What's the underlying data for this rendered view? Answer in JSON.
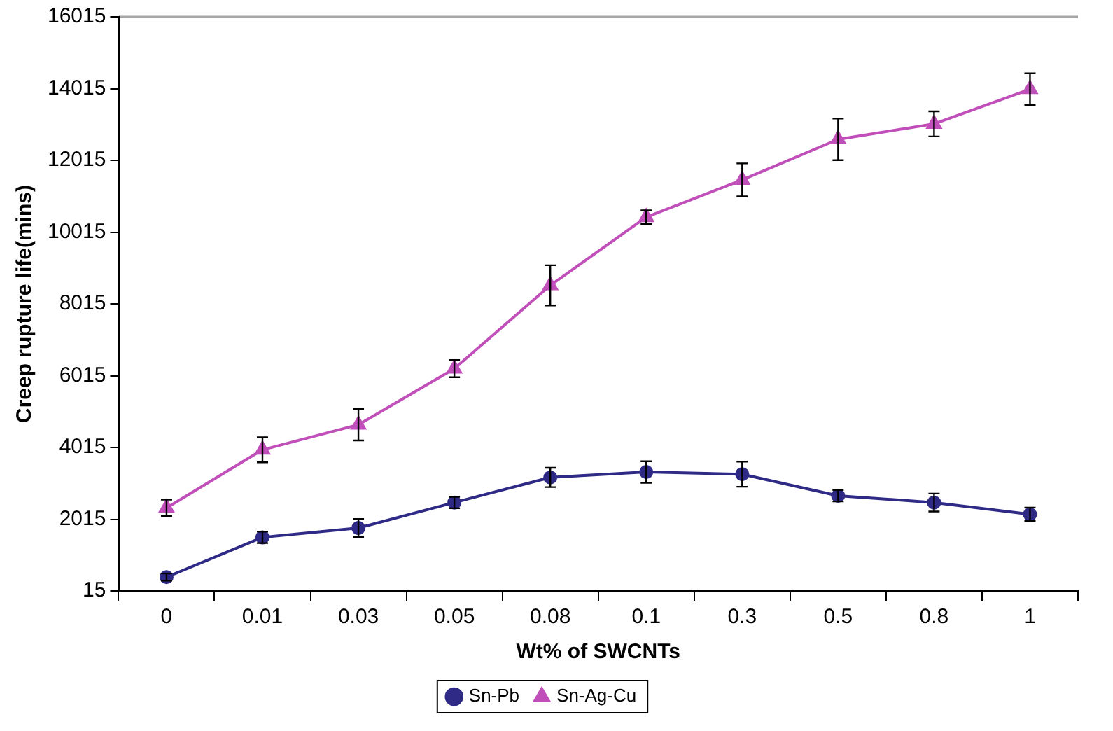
{
  "chart_data": {
    "type": "line",
    "xlabel": "Wt% of SWCNTs",
    "ylabel": "Creep rupture life(mins)",
    "categories": [
      "0",
      "0.01",
      "0.03",
      "0.05",
      "0.08",
      "0.1",
      "0.3",
      "0.5",
      "0.8",
      "1"
    ],
    "ylim": [
      15,
      16015
    ],
    "yticks": [
      15,
      2015,
      4015,
      6015,
      8015,
      10015,
      12015,
      14015,
      16015
    ],
    "grid": false,
    "legend": "bottom",
    "line_style": "solid",
    "series": [
      {
        "name": "Sn-Pb",
        "color": "#2e2a85",
        "marker": "circle",
        "values": [
          400,
          1510,
          1770,
          2480,
          3180,
          3330,
          3270,
          2670,
          2480,
          2150
        ],
        "errors": [
          100,
          160,
          250,
          160,
          270,
          300,
          350,
          160,
          250,
          190
        ]
      },
      {
        "name": "Sn-Ag-Cu",
        "color": "#c04fba",
        "marker": "triangle",
        "values": [
          2330,
          3950,
          4650,
          6210,
          8530,
          10430,
          11470,
          12600,
          13030,
          14000
        ],
        "errors": [
          230,
          350,
          440,
          240,
          560,
          190,
          460,
          580,
          350,
          440
        ]
      }
    ]
  }
}
